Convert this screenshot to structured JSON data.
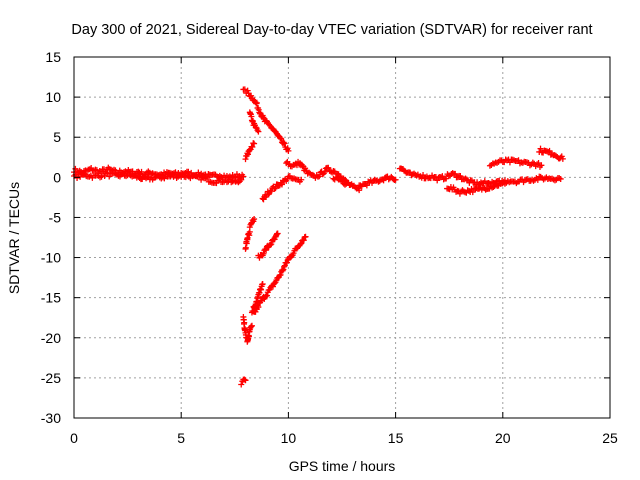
{
  "chart_data": {
    "type": "scatter",
    "title": "Day 300 of 2021, Sidereal Day-to-day VTEC variation (SDTVAR) for receiver rant",
    "xlabel": "GPS time / hours",
    "ylabel": "SDTVAR / TECUs",
    "xlim": [
      0,
      25
    ],
    "ylim": [
      -30,
      15
    ],
    "xticks": [
      0,
      5,
      10,
      15,
      20,
      25
    ],
    "yticks": [
      15,
      10,
      5,
      0,
      -5,
      -10,
      -15,
      -20,
      -25,
      -30
    ],
    "grid": true,
    "marker": "plus",
    "color": "#ff0000",
    "series": [
      {
        "name": "arc-0",
        "points": [
          [
            0.0,
            0.9
          ],
          [
            0.4,
            0.6
          ],
          [
            0.8,
            1.0
          ],
          [
            1.2,
            0.7
          ],
          [
            1.6,
            1.0
          ],
          [
            2.0,
            0.6
          ],
          [
            2.4,
            0.8
          ],
          [
            2.8,
            0.5
          ],
          [
            3.0,
            0.7
          ],
          [
            3.2,
            0.4
          ],
          [
            3.6,
            0.6
          ],
          [
            4.0,
            0.3
          ],
          [
            4.4,
            0.5
          ],
          [
            4.8,
            0.4
          ],
          [
            5.2,
            0.6
          ],
          [
            5.6,
            0.3
          ],
          [
            6.0,
            0.4
          ],
          [
            6.4,
            0.1
          ],
          [
            6.8,
            0.3
          ],
          [
            7.2,
            0.0
          ],
          [
            7.6,
            0.2
          ],
          [
            7.9,
            0.1
          ]
        ]
      },
      {
        "name": "arc-1",
        "points": [
          [
            0.0,
            0.1
          ],
          [
            0.5,
            0.3
          ],
          [
            1.0,
            0.1
          ],
          [
            1.5,
            0.4
          ],
          [
            2.0,
            0.2
          ],
          [
            2.5,
            0.3
          ],
          [
            3.0,
            0.0
          ],
          [
            3.3,
            -0.2
          ],
          [
            3.6,
            -0.1
          ],
          [
            4.0,
            0.0
          ],
          [
            4.5,
            0.1
          ],
          [
            5.0,
            0.2
          ],
          [
            5.5,
            0.1
          ],
          [
            6.0,
            -0.1
          ],
          [
            6.5,
            -0.5
          ],
          [
            7.0,
            -0.4
          ],
          [
            7.4,
            -0.6
          ],
          [
            7.8,
            -0.3
          ]
        ]
      },
      {
        "name": "arc-2",
        "points": [
          [
            7.9,
            10.8
          ],
          [
            8.1,
            10.6
          ],
          [
            8.3,
            10.0
          ],
          [
            8.5,
            9.2
          ],
          [
            8.7,
            8.0
          ],
          [
            8.9,
            7.0
          ],
          [
            9.1,
            6.5
          ],
          [
            9.3,
            6.0
          ],
          [
            9.5,
            5.2
          ],
          [
            9.7,
            4.4
          ],
          [
            9.9,
            3.7
          ],
          [
            10.0,
            3.3
          ]
        ]
      },
      {
        "name": "arc-3",
        "points": [
          [
            8.2,
            8.0
          ],
          [
            8.4,
            6.5
          ],
          [
            8.6,
            5.7
          ]
        ]
      },
      {
        "name": "arc-4",
        "points": [
          [
            8.0,
            2.3
          ],
          [
            8.2,
            3.5
          ],
          [
            8.4,
            4.2
          ]
        ]
      },
      {
        "name": "arc-5",
        "points": [
          [
            8.8,
            -2.8
          ],
          [
            9.0,
            -2.1
          ],
          [
            9.2,
            -1.5
          ],
          [
            9.4,
            -1.2
          ],
          [
            9.6,
            -0.8
          ],
          [
            9.8,
            -0.5
          ],
          [
            10.0,
            0.0
          ],
          [
            10.2,
            -0.2
          ],
          [
            10.4,
            -0.4
          ],
          [
            10.6,
            -0.3
          ]
        ]
      },
      {
        "name": "arc-6",
        "points": [
          [
            9.9,
            2.0
          ],
          [
            10.1,
            1.5
          ],
          [
            10.3,
            1.5
          ],
          [
            10.5,
            1.8
          ],
          [
            10.7,
            1.2
          ],
          [
            10.9,
            0.5
          ],
          [
            11.2,
            0.0
          ],
          [
            11.5,
            0.4
          ],
          [
            11.8,
            1.0
          ],
          [
            12.1,
            0.8
          ],
          [
            12.4,
            0.3
          ],
          [
            12.7,
            -0.6
          ],
          [
            13.0,
            -1.2
          ],
          [
            13.3,
            -1.6
          ]
        ]
      },
      {
        "name": "arc-7",
        "points": [
          [
            12.1,
            0.0
          ],
          [
            12.4,
            -0.3
          ],
          [
            12.7,
            -0.8
          ]
        ]
      },
      {
        "name": "arc-8",
        "points": [
          [
            8.2,
            -6.0
          ],
          [
            8.3,
            -5.5
          ],
          [
            8.4,
            -5.2
          ]
        ]
      },
      {
        "name": "arc-9",
        "points": [
          [
            8.0,
            -8.7
          ],
          [
            8.1,
            -7.5
          ],
          [
            8.2,
            -6.8
          ]
        ]
      },
      {
        "name": "arc-10",
        "points": [
          [
            8.6,
            -10.0
          ],
          [
            8.8,
            -9.5
          ],
          [
            9.0,
            -8.8
          ],
          [
            9.2,
            -8.2
          ],
          [
            9.4,
            -7.6
          ],
          [
            9.5,
            -7.0
          ]
        ]
      },
      {
        "name": "arc-11",
        "points": [
          [
            8.4,
            -17.0
          ],
          [
            8.6,
            -16.0
          ],
          [
            8.8,
            -15.2
          ],
          [
            9.0,
            -14.5
          ],
          [
            9.2,
            -13.8
          ],
          [
            9.4,
            -13.0
          ],
          [
            9.6,
            -12.2
          ],
          [
            9.8,
            -11.2
          ],
          [
            10.0,
            -10.2
          ],
          [
            10.2,
            -9.5
          ],
          [
            10.4,
            -8.8
          ],
          [
            10.6,
            -8.0
          ],
          [
            10.8,
            -7.4
          ]
        ]
      },
      {
        "name": "arc-12",
        "points": [
          [
            8.3,
            -16.8
          ],
          [
            8.5,
            -15.5
          ],
          [
            8.7,
            -14.0
          ],
          [
            8.8,
            -13.3
          ]
        ]
      },
      {
        "name": "arc-13",
        "points": [
          [
            7.9,
            -17.6
          ],
          [
            8.0,
            -19.5
          ],
          [
            8.1,
            -20.5
          ],
          [
            8.2,
            -19.0
          ],
          [
            8.3,
            -18.5
          ]
        ]
      },
      {
        "name": "arc-14",
        "points": [
          [
            7.8,
            -25.6
          ],
          [
            8.0,
            -25.3
          ]
        ]
      },
      {
        "name": "arc-15",
        "points": [
          [
            13.3,
            -1.1
          ],
          [
            13.6,
            -0.8
          ],
          [
            13.9,
            -0.6
          ],
          [
            14.2,
            -0.4
          ],
          [
            14.5,
            -0.1
          ],
          [
            14.8,
            0.0
          ],
          [
            15.0,
            -0.3
          ]
        ]
      },
      {
        "name": "arc-16",
        "points": [
          [
            15.2,
            1.3
          ],
          [
            15.5,
            0.6
          ],
          [
            15.8,
            0.2
          ],
          [
            16.1,
            0.3
          ],
          [
            16.4,
            0.0
          ],
          [
            16.7,
            0.1
          ],
          [
            17.0,
            -0.2
          ],
          [
            17.3,
            0.0
          ],
          [
            17.6,
            0.4
          ],
          [
            17.9,
            0.2
          ],
          [
            18.2,
            -0.2
          ],
          [
            18.5,
            -0.6
          ],
          [
            18.8,
            -0.8
          ],
          [
            19.1,
            -0.7
          ],
          [
            19.4,
            -0.8
          ]
        ]
      },
      {
        "name": "arc-17",
        "points": [
          [
            17.4,
            -1.2
          ],
          [
            17.7,
            -1.5
          ],
          [
            18.0,
            -1.8
          ],
          [
            18.3,
            -1.7
          ],
          [
            18.6,
            -1.6
          ],
          [
            18.9,
            -1.5
          ],
          [
            19.2,
            -1.3
          ],
          [
            19.5,
            -1.1
          ],
          [
            19.8,
            -0.9
          ],
          [
            20.1,
            -0.8
          ]
        ]
      },
      {
        "name": "arc-18",
        "points": [
          [
            19.4,
            1.6
          ],
          [
            19.8,
            1.9
          ],
          [
            20.2,
            2.0
          ],
          [
            20.6,
            2.0
          ],
          [
            21.0,
            1.8
          ],
          [
            21.4,
            1.7
          ],
          [
            21.8,
            1.5
          ]
        ]
      },
      {
        "name": "arc-19",
        "points": [
          [
            19.5,
            -0.8
          ],
          [
            19.9,
            -0.6
          ],
          [
            20.3,
            -0.4
          ],
          [
            20.7,
            -0.5
          ],
          [
            21.1,
            -0.3
          ],
          [
            21.5,
            -0.2
          ],
          [
            21.9,
            -0.1
          ],
          [
            22.3,
            -0.1
          ],
          [
            22.7,
            -0.2
          ]
        ]
      },
      {
        "name": "arc-20",
        "points": [
          [
            21.7,
            3.4
          ],
          [
            22.0,
            3.2
          ],
          [
            22.3,
            3.0
          ],
          [
            22.6,
            2.6
          ],
          [
            22.8,
            2.3
          ]
        ]
      }
    ]
  }
}
